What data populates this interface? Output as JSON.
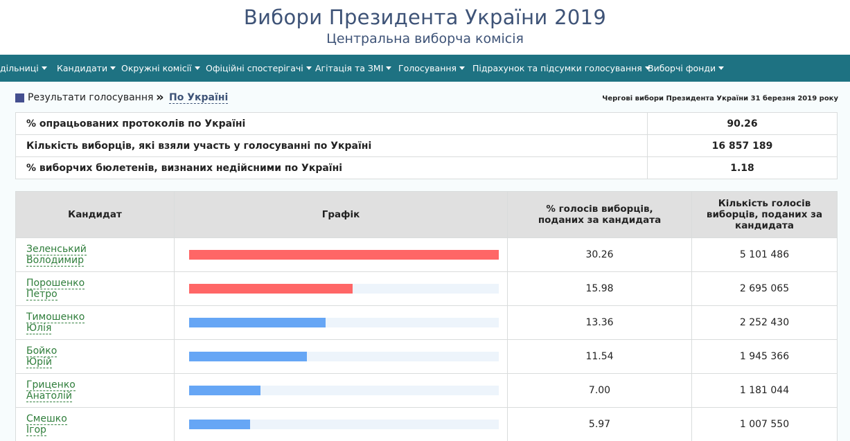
{
  "header": {
    "title": "Вибори Президента України 2019",
    "subtitle": "Центральна виборча комісія"
  },
  "nav": {
    "items": [
      "дільниці",
      "Кандидати",
      "Окружні комісії",
      "Офіційні спостерігачі",
      "Агітація та ЗМІ",
      "Голосування",
      "Підрахунок та підсумки голосування",
      "Виборчі фонди"
    ]
  },
  "breadcrumb": {
    "root": "Результати голосування",
    "separator": "»",
    "current": "По Україні"
  },
  "election_date": "Чергові вибори Президента України 31 березня 2019 року",
  "summary": [
    {
      "label": "% опрацьованих протоколів по Україні",
      "value": "90.26"
    },
    {
      "label": "Кількість виборців, які взяли участь у голосуванні по Україні",
      "value": "16 857 189"
    },
    {
      "label": "% виборчих бюлетенів, визнаних недійсними по Україні",
      "value": "1.18"
    }
  ],
  "results_table": {
    "headers": {
      "candidate": "Кандидат",
      "chart": "Графік",
      "pct": "% голосів виборців, поданих за кандидата",
      "count": "Кількість голосів виборців, поданих за кандидата"
    },
    "rows": [
      {
        "name_1": "Зеленський",
        "name_2": "Володимир",
        "pct": "30.26",
        "count": "5 101 486",
        "bar_fraction": 1.0,
        "bar_color": "#ff6666"
      },
      {
        "name_1": "Порошенко",
        "name_2": "Петро",
        "pct": "15.98",
        "count": "2 695 065",
        "bar_fraction": 0.528,
        "bar_color": "#ff6666"
      },
      {
        "name_1": "Тимошенко",
        "name_2": "Юлія",
        "pct": "13.36",
        "count": "2 252 430",
        "bar_fraction": 0.441,
        "bar_color": "#66a6f5"
      },
      {
        "name_1": "Бойко",
        "name_2": "Юрій",
        "pct": "11.54",
        "count": "1 945 366",
        "bar_fraction": 0.381,
        "bar_color": "#66a6f5"
      },
      {
        "name_1": "Гриценко",
        "name_2": "Анатолій",
        "pct": "7.00",
        "count": "1 181 044",
        "bar_fraction": 0.231,
        "bar_color": "#66a6f5"
      },
      {
        "name_1": "Смешко",
        "name_2": "Ігор",
        "pct": "5.97",
        "count": "1 007 550",
        "bar_fraction": 0.197,
        "bar_color": "#66a6f5"
      }
    ]
  },
  "colors": {
    "navbar": "#1e7282",
    "title": "#3e5377",
    "candidate_link": "#2e7d3a"
  }
}
